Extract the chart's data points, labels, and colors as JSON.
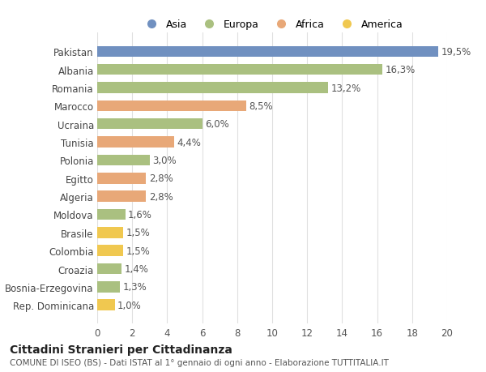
{
  "countries": [
    "Pakistan",
    "Albania",
    "Romania",
    "Marocco",
    "Ucraina",
    "Tunisia",
    "Polonia",
    "Egitto",
    "Algeria",
    "Moldova",
    "Brasile",
    "Colombia",
    "Croazia",
    "Bosnia-Erzegovina",
    "Rep. Dominicana"
  ],
  "values": [
    19.5,
    16.3,
    13.2,
    8.5,
    6.0,
    4.4,
    3.0,
    2.8,
    2.8,
    1.6,
    1.5,
    1.5,
    1.4,
    1.3,
    1.0
  ],
  "labels": [
    "19,5%",
    "16,3%",
    "13,2%",
    "8,5%",
    "6,0%",
    "4,4%",
    "3,0%",
    "2,8%",
    "2,8%",
    "1,6%",
    "1,5%",
    "1,5%",
    "1,4%",
    "1,3%",
    "1,0%"
  ],
  "continents": [
    "Asia",
    "Europa",
    "Europa",
    "Africa",
    "Europa",
    "Africa",
    "Europa",
    "Africa",
    "Africa",
    "Europa",
    "America",
    "America",
    "Europa",
    "Europa",
    "America"
  ],
  "colors": {
    "Asia": "#7090c0",
    "Europa": "#aac080",
    "Africa": "#e8a878",
    "America": "#f0c850"
  },
  "background_color": "#ffffff",
  "grid_color": "#e0e0e0",
  "bar_height": 0.6,
  "xlim": [
    0,
    20
  ],
  "xticks": [
    0,
    2,
    4,
    6,
    8,
    10,
    12,
    14,
    16,
    18,
    20
  ],
  "title1": "Cittadini Stranieri per Cittadinanza",
  "title2": "COMUNE DI ISEO (BS) - Dati ISTAT al 1° gennaio di ogni anno - Elaborazione TUTTITALIA.IT",
  "label_fontsize": 8.5,
  "tick_fontsize": 8.5,
  "country_fontsize": 8.5,
  "value_fontsize": 8.5,
  "title1_fontsize": 10,
  "title2_fontsize": 7.5,
  "legend_labels": [
    "Asia",
    "Europa",
    "Africa",
    "America"
  ]
}
